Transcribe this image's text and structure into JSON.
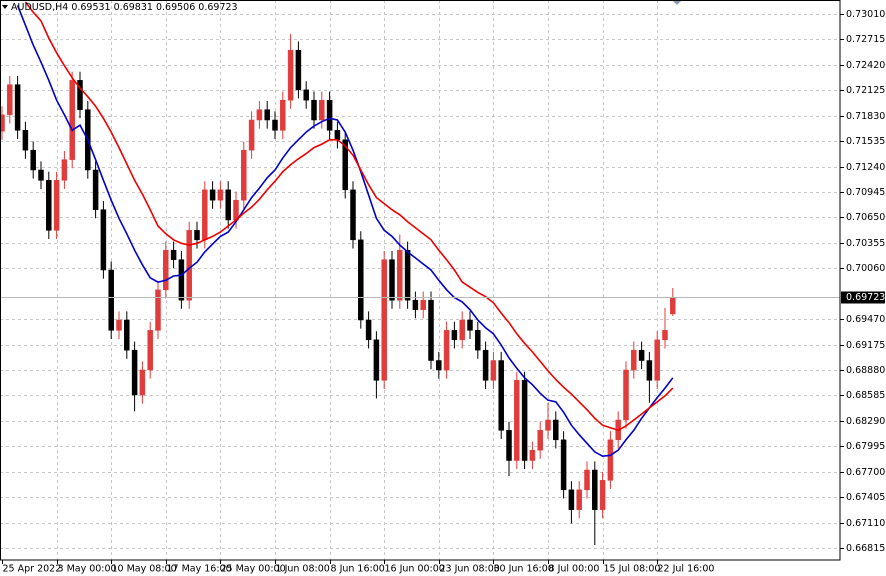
{
  "chart_data": {
    "type": "candlestick",
    "title": "AUDUSD,H4",
    "up_color": "#e03c3c",
    "down_color": "#000000",
    "grid": true,
    "ylim": [
      0.66676,
      0.73172
    ],
    "yticks": [
      {
        "value": 0.7301,
        "label": "0.73010"
      },
      {
        "value": 0.72715,
        "label": "0.72715"
      },
      {
        "value": 0.7242,
        "label": "0.72420"
      },
      {
        "value": 0.72125,
        "label": "0.72125"
      },
      {
        "value": 0.7183,
        "label": "0.71830"
      },
      {
        "value": 0.71535,
        "label": "0.71535"
      },
      {
        "value": 0.7124,
        "label": "0.71240"
      },
      {
        "value": 0.70945,
        "label": "0.70945"
      },
      {
        "value": 0.7065,
        "label": "0.70650"
      },
      {
        "value": 0.70355,
        "label": "0.70355"
      },
      {
        "value": 0.7006,
        "label": "0.70060"
      },
      {
        "value": 0.6947,
        "label": "0.69470"
      },
      {
        "value": 0.69175,
        "label": "0.69175"
      },
      {
        "value": 0.6888,
        "label": "0.68880"
      },
      {
        "value": 0.68585,
        "label": "0.68585"
      },
      {
        "value": 0.6829,
        "label": "0.68290"
      },
      {
        "value": 0.67995,
        "label": "0.67995"
      },
      {
        "value": 0.677,
        "label": "0.67700"
      },
      {
        "value": 0.67405,
        "label": "0.67405"
      },
      {
        "value": 0.6711,
        "label": "0.67110"
      },
      {
        "value": 0.66815,
        "label": "0.66815"
      }
    ],
    "categories": [
      "25 Apr 2022",
      null,
      null,
      null,
      null,
      null,
      null,
      "3 May 00:00",
      null,
      null,
      null,
      null,
      null,
      null,
      "10 May 08:00",
      null,
      null,
      null,
      null,
      null,
      null,
      "17 May 16:00",
      null,
      null,
      null,
      null,
      null,
      null,
      "25 May 00:00",
      null,
      null,
      null,
      null,
      null,
      null,
      "1 Jun 08:00",
      null,
      null,
      null,
      null,
      null,
      null,
      "8 Jun 16:00",
      null,
      null,
      null,
      null,
      null,
      null,
      "16 Jun 00:00",
      null,
      null,
      null,
      null,
      null,
      null,
      "23 Jun 08:00",
      null,
      null,
      null,
      null,
      null,
      null,
      "30 Jun 16:00",
      null,
      null,
      null,
      null,
      null,
      null,
      "8 Jul 00:00",
      null,
      null,
      null,
      null,
      null,
      null,
      "15 Jul 08:00",
      null,
      null,
      null,
      null,
      null,
      null,
      "22 Jul 16:00",
      null,
      null
    ],
    "open": [
      0.7165,
      0.7184,
      0.7219,
      0.7166,
      0.7143,
      0.712,
      0.7108,
      0.705,
      0.7108,
      0.7132,
      0.7224,
      0.719,
      0.712,
      0.7074,
      0.7004,
      0.6934,
      0.6946,
      0.6911,
      0.6859,
      0.6888,
      0.6934,
      0.6981,
      0.7027,
      0.7016,
      0.6969,
      0.705,
      0.7039,
      0.7097,
      0.7085,
      0.7097,
      0.7062,
      0.7085,
      0.7143,
      0.7178,
      0.719,
      0.7178,
      0.7166,
      0.7201,
      0.7259,
      0.7213,
      0.7201,
      0.7178,
      0.7201,
      0.7166,
      0.7155,
      0.7097,
      0.7039,
      0.6946,
      0.6923,
      0.6876,
      0.7016,
      0.6969,
      0.7027,
      0.6969,
      0.6958,
      0.6969,
      0.6899,
      0.6888,
      0.6934,
      0.6923,
      0.6946,
      0.6934,
      0.6911,
      0.6876,
      0.6899,
      0.6818,
      0.6783,
      0.6876,
      0.6783,
      0.6795,
      0.6818,
      0.683,
      0.6807,
      0.6749,
      0.6726,
      0.6749,
      0.6772,
      0.6726,
      0.676,
      0.6807,
      0.683,
      0.6888,
      0.6911,
      0.6899,
      0.6876,
      0.6923,
      0.69531
    ],
    "high": [
      0.7194,
      0.7229,
      0.7229,
      0.7176,
      0.7153,
      0.713,
      0.7118,
      0.7118,
      0.7142,
      0.7234,
      0.7234,
      0.72,
      0.713,
      0.7084,
      0.7014,
      0.6956,
      0.6956,
      0.6921,
      0.6898,
      0.6944,
      0.6991,
      0.7037,
      0.7037,
      0.7026,
      0.706,
      0.706,
      0.7107,
      0.7107,
      0.7107,
      0.7107,
      0.7095,
      0.7153,
      0.7188,
      0.72,
      0.72,
      0.7188,
      0.7211,
      0.7278,
      0.7269,
      0.7223,
      0.7211,
      0.7211,
      0.7211,
      0.7176,
      0.7165,
      0.7107,
      0.7049,
      0.6956,
      0.6933,
      0.7026,
      0.7026,
      0.7045,
      0.7037,
      0.6979,
      0.6979,
      0.6979,
      0.6909,
      0.6944,
      0.6944,
      0.6956,
      0.6956,
      0.6944,
      0.6921,
      0.6909,
      0.6909,
      0.6828,
      0.6886,
      0.6886,
      0.6805,
      0.6828,
      0.685,
      0.684,
      0.6817,
      0.6759,
      0.6759,
      0.6782,
      0.6782,
      0.677,
      0.6817,
      0.684,
      0.6898,
      0.6921,
      0.6921,
      0.6909,
      0.6933,
      0.696,
      0.69831
    ],
    "low": [
      0.7155,
      0.7174,
      0.7156,
      0.7133,
      0.711,
      0.7098,
      0.704,
      0.704,
      0.7098,
      0.7122,
      0.718,
      0.711,
      0.7064,
      0.6994,
      0.6924,
      0.6924,
      0.6901,
      0.684,
      0.6849,
      0.6878,
      0.6924,
      0.6971,
      0.7006,
      0.6959,
      0.6959,
      0.7029,
      0.7029,
      0.7075,
      0.7075,
      0.7052,
      0.7052,
      0.7075,
      0.7133,
      0.7168,
      0.7168,
      0.7156,
      0.7156,
      0.7191,
      0.7203,
      0.7191,
      0.7168,
      0.7168,
      0.7156,
      0.7145,
      0.7087,
      0.7029,
      0.6936,
      0.6913,
      0.6855,
      0.6866,
      0.6959,
      0.6959,
      0.6959,
      0.6948,
      0.6948,
      0.6889,
      0.6878,
      0.6878,
      0.6913,
      0.6913,
      0.6924,
      0.6901,
      0.6866,
      0.6866,
      0.6808,
      0.6765,
      0.6773,
      0.6773,
      0.6773,
      0.6785,
      0.6808,
      0.6797,
      0.6739,
      0.671,
      0.6716,
      0.6739,
      0.6685,
      0.6716,
      0.675,
      0.6797,
      0.682,
      0.6878,
      0.6889,
      0.685,
      0.6866,
      0.6913,
      0.69506
    ],
    "close": [
      0.7184,
      0.7219,
      0.7166,
      0.7143,
      0.712,
      0.7108,
      0.705,
      0.7108,
      0.7132,
      0.7224,
      0.719,
      0.712,
      0.7074,
      0.7004,
      0.6934,
      0.6946,
      0.6911,
      0.6859,
      0.6888,
      0.6934,
      0.6981,
      0.7027,
      0.7016,
      0.6969,
      0.705,
      0.7039,
      0.7097,
      0.7085,
      0.7097,
      0.7062,
      0.7085,
      0.7143,
      0.7178,
      0.719,
      0.7178,
      0.7166,
      0.7201,
      0.7259,
      0.7213,
      0.7201,
      0.7178,
      0.7201,
      0.7166,
      0.7155,
      0.7097,
      0.7039,
      0.6946,
      0.6923,
      0.6876,
      0.7016,
      0.6969,
      0.7027,
      0.6969,
      0.6958,
      0.6969,
      0.6899,
      0.6888,
      0.6934,
      0.6923,
      0.6946,
      0.6934,
      0.6911,
      0.6876,
      0.6899,
      0.6818,
      0.6783,
      0.6876,
      0.6783,
      0.6795,
      0.6818,
      0.683,
      0.6807,
      0.6749,
      0.6726,
      0.6749,
      0.6772,
      0.6726,
      0.676,
      0.6807,
      0.683,
      0.6888,
      0.6911,
      0.6899,
      0.6876,
      0.6923,
      0.6934,
      0.69723
    ],
    "series": [
      {
        "color": "#0000cc",
        "values": [
          null,
          null,
          0.7311,
          0.7288,
          0.7265,
          0.7245,
          0.7224,
          0.7201,
          0.7184,
          0.7166,
          0.7172,
          0.7155,
          0.7132,
          0.7108,
          0.7085,
          0.7064,
          0.7046,
          0.7027,
          0.701,
          0.6995,
          0.699,
          0.6992,
          0.6997,
          0.6998,
          0.7006,
          0.7013,
          0.7025,
          0.7034,
          0.7043,
          0.7048,
          0.706,
          0.7074,
          0.7088,
          0.7099,
          0.7111,
          0.712,
          0.7134,
          0.7146,
          0.7155,
          0.7164,
          0.7171,
          0.7176,
          0.718,
          0.7178,
          0.7164,
          0.7143,
          0.7118,
          0.7091,
          0.7064,
          0.705,
          0.7043,
          0.7033,
          0.7025,
          0.7018,
          0.7011,
          0.7004,
          0.6992,
          0.6981,
          0.6972,
          0.6967,
          0.6958,
          0.6946,
          0.6937,
          0.693,
          0.6917,
          0.6902,
          0.689,
          0.6879,
          0.6871,
          0.6861,
          0.6853,
          0.6851,
          0.6839,
          0.6824,
          0.6813,
          0.6803,
          0.6793,
          0.6788,
          0.6789,
          0.6795,
          0.6807,
          0.6818,
          0.6832,
          0.6844,
          0.6856,
          0.6867,
          0.6879
        ]
      },
      {
        "color": "#ee0000",
        "values": [
          null,
          null,
          null,
          0.7315,
          0.7303,
          0.7293,
          0.7273,
          0.7256,
          0.7241,
          0.7227,
          0.7215,
          0.7205,
          0.7194,
          0.718,
          0.7164,
          0.7146,
          0.7127,
          0.7108,
          0.7092,
          0.7074,
          0.7055,
          0.7046,
          0.7039,
          0.7035,
          0.7033,
          0.7035,
          0.7039,
          0.7043,
          0.7048,
          0.7055,
          0.7062,
          0.707,
          0.7077,
          0.7086,
          0.7097,
          0.7107,
          0.7118,
          0.7126,
          0.7133,
          0.7139,
          0.7146,
          0.715,
          0.7155,
          0.7155,
          0.7148,
          0.7137,
          0.712,
          0.7103,
          0.7088,
          0.7081,
          0.7074,
          0.7068,
          0.706,
          0.7053,
          0.7046,
          0.7039,
          0.7027,
          0.7016,
          0.7004,
          0.699,
          0.6984,
          0.6978,
          0.6973,
          0.6966,
          0.6954,
          0.6943,
          0.693,
          0.6919,
          0.6909,
          0.6898,
          0.6887,
          0.6877,
          0.6868,
          0.686,
          0.6851,
          0.6842,
          0.6832,
          0.6824,
          0.6821,
          0.6818,
          0.6823,
          0.683,
          0.6837,
          0.6844,
          0.6851,
          0.6858,
          0.6867
        ]
      }
    ]
  }
}
